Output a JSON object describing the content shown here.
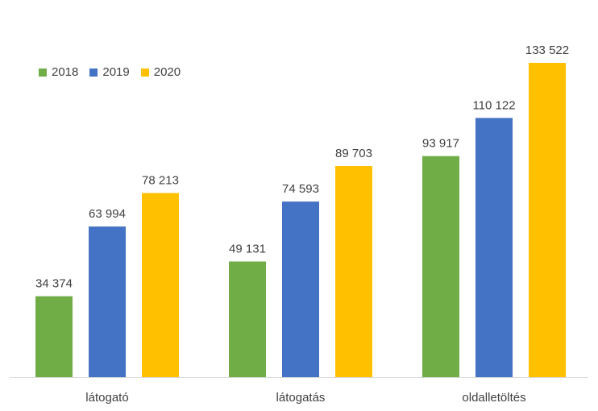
{
  "chart_data": {
    "type": "bar",
    "categories": [
      "látogató",
      "látogatás",
      "oldalletöltés"
    ],
    "series": [
      {
        "name": "2018",
        "color": "#70ad47",
        "values": [
          34374,
          49131,
          93917
        ],
        "labels": [
          "34 374",
          "49 131",
          "93 917"
        ]
      },
      {
        "name": "2019",
        "color": "#4472c4",
        "values": [
          63994,
          74593,
          110122
        ],
        "labels": [
          "63 994",
          "74 593",
          "110 122"
        ]
      },
      {
        "name": "2020",
        "color": "#ffc000",
        "values": [
          78213,
          89703,
          133522
        ],
        "labels": [
          "78 213",
          "89 703",
          "133 522"
        ]
      }
    ],
    "ylim": [
      0,
      133522
    ],
    "legend": "top-left",
    "grid": false
  }
}
